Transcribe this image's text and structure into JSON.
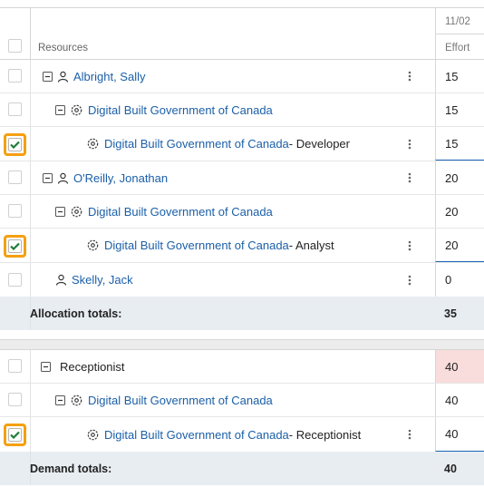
{
  "header": {
    "resources_label": "Resources",
    "date_label": "11/02",
    "effort_label": "Effort"
  },
  "allocation_rows": [
    {
      "name": "Albright, Sally",
      "suffix": "",
      "value": "15",
      "checked": false
    },
    {
      "name": "Digital Built Government of Canada",
      "suffix": "",
      "value": "15",
      "checked": false
    },
    {
      "name": "Digital Built Government of Canada",
      "suffix": " - Developer",
      "value": "15",
      "checked": true
    },
    {
      "name": "O'Reilly, Jonathan",
      "suffix": "",
      "value": "20",
      "checked": false
    },
    {
      "name": "Digital Built Government of Canada",
      "suffix": "",
      "value": "20",
      "checked": false
    },
    {
      "name": "Digital Built Government of Canada",
      "suffix": " - Analyst",
      "value": "20",
      "checked": true
    },
    {
      "name": "Skelly, Jack",
      "suffix": "",
      "value": "0",
      "checked": false
    }
  ],
  "allocation_totals": {
    "label": "Allocation totals:",
    "value": "35"
  },
  "demand_rows": [
    {
      "name": "Receptionist",
      "suffix": "",
      "value": "40",
      "checked": false
    },
    {
      "name": "Digital Built Government of Canada",
      "suffix": "",
      "value": "40",
      "checked": false
    },
    {
      "name": "Digital Built Government of Canada",
      "suffix": " - Receptionist",
      "value": "40",
      "checked": true
    }
  ],
  "demand_totals": {
    "label": "Demand totals:",
    "value": "40"
  },
  "colors": {
    "link": "#1b5fa8",
    "highlight": "#f5a010",
    "check": "#1e7d3a",
    "totals_bg": "#e8edf2",
    "over_alloc": "#f9dcdc"
  }
}
